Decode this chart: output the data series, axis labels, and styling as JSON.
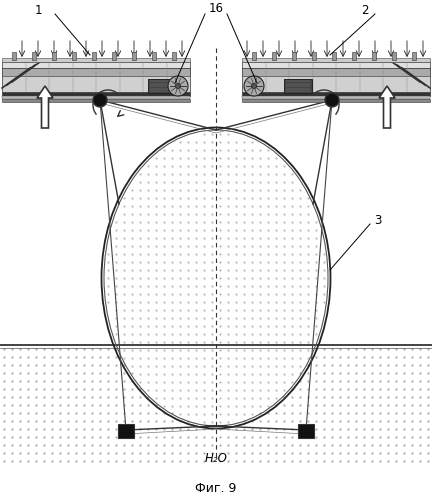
{
  "fig_width": 4.32,
  "fig_height": 5.0,
  "dpi": 100,
  "bg_color": "#ffffff",
  "label_1": "1",
  "label_2": "2",
  "label_3": "3",
  "label_16": "16",
  "label_h2o": "H₂O",
  "label_fig": "Фиг. 9",
  "annot_fontsize": 8.5
}
